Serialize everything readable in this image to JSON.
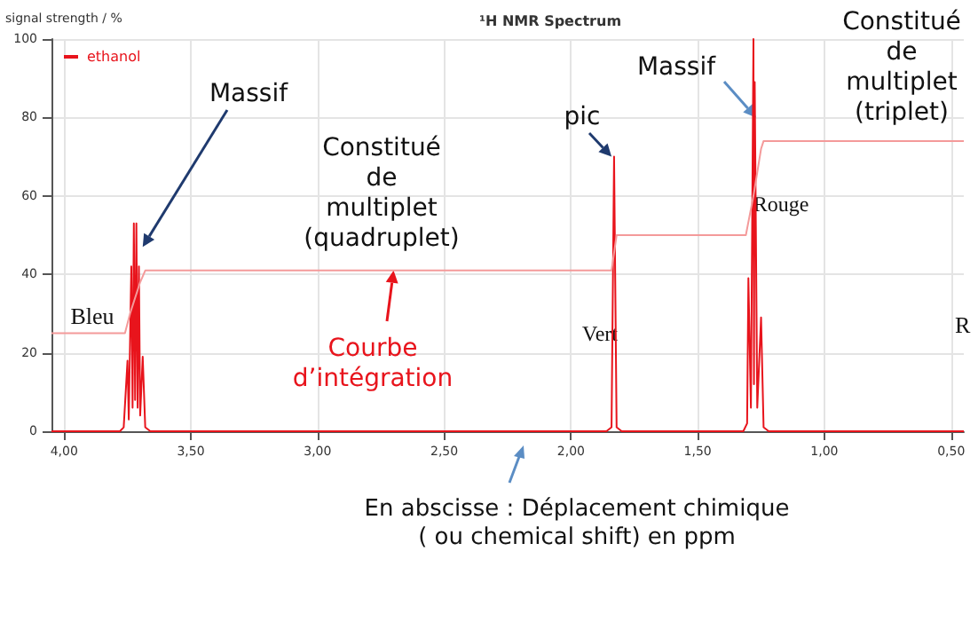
{
  "chart_data": {
    "type": "line",
    "title": "¹H NMR Spectrum",
    "ylabel": "signal strength / %",
    "xlim": [
      4.05,
      0.45
    ],
    "xticks": [
      {
        "value": 4,
        "label": "4,00"
      },
      {
        "value": 3.5,
        "label": "3,50"
      },
      {
        "value": 3,
        "label": "3,00"
      },
      {
        "value": 2.5,
        "label": "2,50"
      },
      {
        "value": 2,
        "label": "2,00"
      },
      {
        "value": 1.5,
        "label": "1,50"
      },
      {
        "value": 1,
        "label": "1,00"
      },
      {
        "value": 0.5,
        "label": "0,50"
      }
    ],
    "ylim": [
      0,
      100
    ],
    "yticks": [
      0,
      20,
      40,
      60,
      80,
      100
    ],
    "grid": true,
    "legend": "top left",
    "marker": "none",
    "line_style": "solid",
    "series": [
      {
        "name": "ethanol",
        "color": "#e8141c",
        "x": [
          4.05,
          3.78,
          3.765,
          3.75,
          3.745,
          3.735,
          3.73,
          3.725,
          3.72,
          3.715,
          3.71,
          3.705,
          3.7,
          3.69,
          3.68,
          3.66,
          1.86,
          1.84,
          1.83,
          1.82,
          1.8,
          1.32,
          1.305,
          1.3,
          1.29,
          1.28,
          1.278,
          1.275,
          1.265,
          1.25,
          1.24,
          1.22,
          0.45
        ],
        "values": [
          0,
          0,
          1,
          18,
          3,
          42,
          6,
          53,
          8,
          53,
          6,
          42,
          4,
          19,
          1,
          0,
          0,
          1,
          70,
          1,
          0,
          0,
          2,
          39,
          6,
          100,
          12,
          89,
          6,
          29,
          1,
          0,
          0
        ]
      },
      {
        "color": "#f49a9a",
        "x": [
          4.05,
          3.76,
          3.74,
          3.7,
          3.68,
          1.84,
          1.82,
          1.31,
          1.28,
          1.25,
          1.24,
          0.45
        ],
        "values": [
          25,
          25,
          30,
          38,
          41,
          41,
          50,
          50,
          60,
          72,
          74,
          74
        ]
      }
    ],
    "annotations": [
      {
        "text": "Massif",
        "x": 3.69,
        "y": 47
      },
      "Constitué\nde\nmultiplet\n(quadruplet)",
      "Bleu",
      {
        "text": "Courbe\nd’intégration",
        "x": 2.7,
        "y": 41
      },
      {
        "text": "pic",
        "x": 1.84,
        "y": 70
      },
      "Vert",
      {
        "text": "Massif",
        "x": 1.27,
        "y": 80
      },
      "Rouge",
      "Constitué\nde\nmultiplet\n(triplet)",
      "R",
      "En abscisse : Déplacement chimique\n( ou chemical shift) en ppm"
    ]
  }
}
